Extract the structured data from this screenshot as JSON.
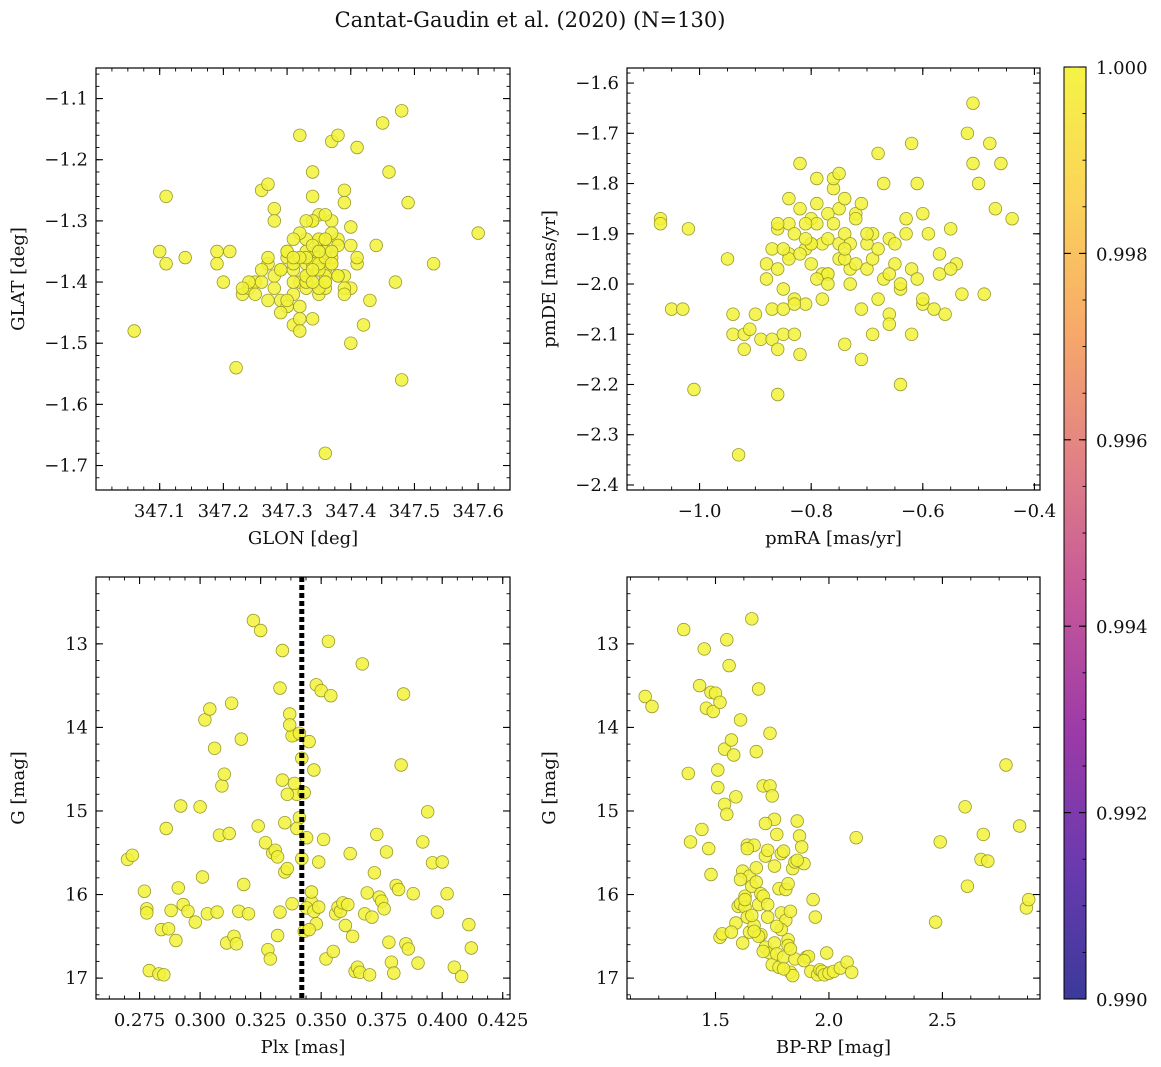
{
  "figure": {
    "title": "Cantat-Gaudin et al. (2020) (N=130)"
  },
  "colors": {
    "point_fill": "#f2f23a",
    "point_edge": "#9a9a2c",
    "median_line": "#000000",
    "colormap": [
      "#3b3a9a",
      "#6a3aae",
      "#9c3aa8",
      "#c4569a",
      "#e07f86",
      "#f7a86a",
      "#fbd35a",
      "#f5f345"
    ]
  },
  "colorbar": {
    "ticks": [
      "0.990",
      "0.992",
      "0.994",
      "0.996",
      "0.998",
      "1.000"
    ],
    "range": [
      0.99,
      1.0
    ]
  },
  "chart_data": [
    {
      "id": "lb",
      "type": "scatter",
      "xlabel": "GLON [deg]",
      "ylabel": "GLAT [deg]",
      "xlim": [
        347.0,
        347.65
      ],
      "ylim": [
        -1.74,
        -1.05
      ],
      "xticks": [
        347.1,
        347.2,
        347.3,
        347.4,
        347.5,
        347.6
      ],
      "xtick_labels": [
        "347.1",
        "347.2",
        "347.3",
        "347.4",
        "347.5",
        "347.6"
      ],
      "yticks": [
        -1.1,
        -1.2,
        -1.3,
        -1.4,
        -1.5,
        -1.6,
        -1.7
      ],
      "ytick_labels": [
        "−1.1",
        "−1.2",
        "−1.3",
        "−1.4",
        "−1.5",
        "−1.6",
        "−1.7"
      ],
      "invert_y": false,
      "x": [
        347.06,
        347.11,
        347.11,
        347.1,
        347.14,
        347.19,
        347.19,
        347.2,
        347.21,
        347.22,
        347.23,
        347.24,
        347.25,
        347.26,
        347.26,
        347.27,
        347.27,
        347.27,
        347.28,
        347.28,
        347.28,
        347.29,
        347.29,
        347.3,
        347.3,
        347.3,
        347.31,
        347.31,
        347.31,
        347.32,
        347.32,
        347.32,
        347.32,
        347.33,
        347.33,
        347.33,
        347.33,
        347.33,
        347.34,
        347.34,
        347.34,
        347.34,
        347.34,
        347.34,
        347.35,
        347.35,
        347.35,
        347.35,
        347.35,
        347.36,
        347.36,
        347.36,
        347.36,
        347.36,
        347.37,
        347.37,
        347.37,
        347.38,
        347.38,
        347.38,
        347.39,
        347.39,
        347.39,
        347.4,
        347.4,
        347.4,
        347.41,
        347.41,
        347.42,
        347.43,
        347.44,
        347.45,
        347.46,
        347.47,
        347.48,
        347.48,
        347.49,
        347.53,
        347.6,
        347.37,
        347.34,
        347.36,
        347.33,
        347.35,
        347.31,
        347.4,
        347.41,
        347.39,
        347.3,
        347.28,
        347.32,
        347.34,
        347.35,
        347.36,
        347.38,
        347.33,
        347.35,
        347.37,
        347.29,
        347.31,
        347.34,
        347.36,
        347.39,
        347.32,
        347.33,
        347.35,
        347.34,
        347.3,
        347.29,
        347.31,
        347.27,
        347.26,
        347.25,
        347.24,
        347.23,
        347.36,
        347.38,
        347.35,
        347.33,
        347.37,
        347.34,
        347.36,
        347.32,
        347.35,
        347.34,
        347.31,
        347.36,
        347.37,
        347.36,
        347.38
      ],
      "y": [
        -1.48,
        -1.26,
        -1.37,
        -1.35,
        -1.36,
        -1.35,
        -1.37,
        -1.4,
        -1.35,
        -1.54,
        -1.42,
        -1.41,
        -1.4,
        -1.25,
        -1.4,
        -1.43,
        -1.24,
        -1.37,
        -1.28,
        -1.3,
        -1.41,
        -1.43,
        -1.38,
        -1.44,
        -1.36,
        -1.35,
        -1.38,
        -1.42,
        -1.47,
        -1.16,
        -1.46,
        -1.48,
        -1.4,
        -1.33,
        -1.35,
        -1.37,
        -1.39,
        -1.41,
        -1.22,
        -1.3,
        -1.36,
        -1.38,
        -1.4,
        -1.46,
        -1.34,
        -1.36,
        -1.38,
        -1.42,
        -1.29,
        -1.33,
        -1.35,
        -1.38,
        -1.41,
        -1.68,
        -1.17,
        -1.3,
        -1.37,
        -1.16,
        -1.33,
        -1.39,
        -1.25,
        -1.27,
        -1.39,
        -1.31,
        -1.34,
        -1.5,
        -1.37,
        -1.18,
        -1.47,
        -1.43,
        -1.34,
        -1.14,
        -1.22,
        -1.4,
        -1.12,
        -1.56,
        -1.27,
        -1.37,
        -1.32,
        -1.32,
        -1.26,
        -1.39,
        -1.4,
        -1.33,
        -1.37,
        -1.41,
        -1.36,
        -1.41,
        -1.43,
        -1.39,
        -1.32,
        -1.37,
        -1.38,
        -1.4,
        -1.34,
        -1.36,
        -1.41,
        -1.36,
        -1.38,
        -1.33,
        -1.3,
        -1.35,
        -1.42,
        -1.36,
        -1.39,
        -1.37,
        -1.4,
        -1.35,
        -1.45,
        -1.4,
        -1.36,
        -1.38,
        -1.42,
        -1.4,
        -1.41,
        -1.36,
        -1.39,
        -1.33,
        -1.3,
        -1.35,
        -1.34,
        -1.33,
        -1.44,
        -1.35,
        -1.38,
        -1.36,
        -1.4,
        -1.37,
        -1.29,
        -1.39
      ],
      "median_x": null
    },
    {
      "id": "pm",
      "type": "scatter",
      "xlabel": "pmRA [mas/yr]",
      "ylabel": "pmDE [mas/yr]",
      "xlim": [
        -1.13,
        -0.39
      ],
      "ylim": [
        -2.41,
        -1.57
      ],
      "xticks": [
        -1.0,
        -0.8,
        -0.6,
        -0.4
      ],
      "xtick_labels": [
        "−1.0",
        "−0.8",
        "−0.6",
        "−0.4"
      ],
      "yticks": [
        -1.6,
        -1.7,
        -1.8,
        -1.9,
        -2.0,
        -2.1,
        -2.2,
        -2.3,
        -2.4
      ],
      "ytick_labels": [
        "−1.6",
        "−1.7",
        "−1.8",
        "−1.9",
        "−2.0",
        "−2.1",
        "−2.2",
        "−2.3",
        "−2.4"
      ],
      "invert_y": false,
      "x": [
        -1.07,
        -1.07,
        -1.05,
        -1.03,
        -1.02,
        -1.01,
        -0.95,
        -0.94,
        -0.94,
        -0.93,
        -0.92,
        -0.91,
        -0.89,
        -0.88,
        -0.87,
        -0.87,
        -0.87,
        -0.86,
        -0.86,
        -0.86,
        -0.85,
        -0.85,
        -0.85,
        -0.84,
        -0.84,
        -0.84,
        -0.83,
        -0.83,
        -0.82,
        -0.82,
        -0.82,
        -0.81,
        -0.81,
        -0.8,
        -0.8,
        -0.8,
        -0.79,
        -0.79,
        -0.78,
        -0.78,
        -0.77,
        -0.77,
        -0.77,
        -0.76,
        -0.76,
        -0.75,
        -0.75,
        -0.75,
        -0.74,
        -0.74,
        -0.74,
        -0.73,
        -0.73,
        -0.73,
        -0.72,
        -0.72,
        -0.71,
        -0.71,
        -0.7,
        -0.7,
        -0.69,
        -0.69,
        -0.69,
        -0.68,
        -0.68,
        -0.67,
        -0.67,
        -0.66,
        -0.66,
        -0.65,
        -0.65,
        -0.64,
        -0.64,
        -0.63,
        -0.63,
        -0.62,
        -0.62,
        -0.62,
        -0.61,
        -0.61,
        -0.6,
        -0.6,
        -0.59,
        -0.58,
        -0.57,
        -0.56,
        -0.55,
        -0.54,
        -0.53,
        -0.52,
        -0.51,
        -0.51,
        -0.5,
        -0.49,
        -0.48,
        -0.47,
        -0.46,
        -0.44,
        -0.84,
        -0.76,
        -0.78,
        -0.81,
        -0.79,
        -0.82,
        -0.74,
        -0.75,
        -0.77,
        -0.83,
        -0.86,
        -0.72,
        -0.68,
        -0.66,
        -0.7,
        -0.64,
        -0.8,
        -0.85,
        -0.88,
        -0.9,
        -0.92,
        -0.83,
        -0.79,
        -0.74,
        -0.71,
        -0.66,
        -0.6,
        -0.57,
        -0.55,
        -0.77,
        -0.81,
        -0.86
      ],
      "y": [
        -1.87,
        -1.88,
        -2.05,
        -2.05,
        -1.89,
        -2.21,
        -1.95,
        -2.06,
        -2.1,
        -2.34,
        -2.1,
        -2.09,
        -2.11,
        -1.96,
        -1.93,
        -2.05,
        -2.11,
        -1.89,
        -1.97,
        -2.22,
        -2.01,
        -2.05,
        -2.1,
        -1.83,
        -1.88,
        -1.94,
        -2.03,
        -2.1,
        -1.76,
        -1.85,
        -2.14,
        -1.93,
        -2.04,
        -1.87,
        -1.92,
        -1.96,
        -1.79,
        -1.88,
        -1.92,
        -2.03,
        -1.86,
        -1.91,
        -1.98,
        -1.81,
        -1.88,
        -1.85,
        -1.92,
        -1.95,
        -1.83,
        -1.9,
        -2.12,
        -1.92,
        -1.97,
        -2.0,
        -1.86,
        -1.96,
        -2.05,
        -2.15,
        -1.92,
        -1.97,
        -1.9,
        -1.95,
        -2.1,
        -1.74,
        -2.03,
        -1.8,
        -1.99,
        -1.91,
        -2.06,
        -1.92,
        -1.96,
        -2.01,
        -2.2,
        -1.87,
        -1.9,
        -1.72,
        -1.97,
        -2.1,
        -1.8,
        -1.99,
        -1.86,
        -2.04,
        -1.9,
        -2.05,
        -1.98,
        -2.06,
        -1.89,
        -1.96,
        -2.02,
        -1.7,
        -1.64,
        -1.76,
        -1.8,
        -2.02,
        -1.72,
        -1.85,
        -1.76,
        -1.87,
        -1.95,
        -1.79,
        -1.98,
        -1.88,
        -1.84,
        -1.94,
        -1.95,
        -1.78,
        -1.98,
        -1.9,
        -2.13,
        -1.87,
        -1.93,
        -2.08,
        -1.9,
        -2.0,
        -1.92,
        -1.93,
        -1.99,
        -2.06,
        -2.13,
        -2.04,
        -1.99,
        -1.93,
        -1.84,
        -1.98,
        -2.03,
        -1.94,
        -1.97,
        -2.0,
        -1.91,
        -1.88
      ],
      "median_x": null
    },
    {
      "id": "plx",
      "type": "scatter",
      "xlabel": "Plx [mas]",
      "ylabel": "G [mag]",
      "xlim": [
        0.257,
        0.428
      ],
      "ylim": [
        12.2,
        17.25
      ],
      "xticks": [
        0.275,
        0.3,
        0.325,
        0.35,
        0.375,
        0.4,
        0.425
      ],
      "xtick_labels": [
        "0.275",
        "0.300",
        "0.325",
        "0.350",
        "0.375",
        "0.400",
        "0.425"
      ],
      "yticks": [
        13,
        14,
        15,
        16,
        17
      ],
      "ytick_labels": [
        "13",
        "14",
        "15",
        "16",
        "17"
      ],
      "invert_y": true,
      "x": [
        0.27,
        0.272,
        0.277,
        0.278,
        0.278,
        0.279,
        0.283,
        0.284,
        0.285,
        0.286,
        0.287,
        0.288,
        0.29,
        0.291,
        0.292,
        0.293,
        0.295,
        0.298,
        0.3,
        0.301,
        0.302,
        0.303,
        0.304,
        0.306,
        0.307,
        0.308,
        0.309,
        0.31,
        0.311,
        0.312,
        0.313,
        0.314,
        0.315,
        0.316,
        0.317,
        0.318,
        0.32,
        0.322,
        0.324,
        0.325,
        0.327,
        0.328,
        0.329,
        0.33,
        0.331,
        0.332,
        0.333,
        0.334,
        0.335,
        0.336,
        0.337,
        0.338,
        0.339,
        0.34,
        0.341,
        0.342,
        0.343,
        0.344,
        0.345,
        0.346,
        0.347,
        0.348,
        0.349,
        0.35,
        0.351,
        0.352,
        0.353,
        0.354,
        0.355,
        0.356,
        0.357,
        0.358,
        0.359,
        0.36,
        0.361,
        0.362,
        0.363,
        0.364,
        0.365,
        0.366,
        0.367,
        0.368,
        0.369,
        0.37,
        0.371,
        0.372,
        0.373,
        0.374,
        0.375,
        0.376,
        0.377,
        0.378,
        0.379,
        0.38,
        0.381,
        0.382,
        0.383,
        0.384,
        0.385,
        0.386,
        0.388,
        0.39,
        0.392,
        0.394,
        0.396,
        0.398,
        0.4,
        0.402,
        0.405,
        0.408,
        0.411,
        0.412,
        0.336,
        0.338,
        0.341,
        0.337,
        0.343,
        0.339,
        0.334,
        0.342,
        0.344,
        0.34,
        0.335,
        0.346,
        0.332,
        0.347,
        0.348,
        0.345,
        0.333,
        0.349
      ],
      "y": [
        15.58,
        15.53,
        15.96,
        16.17,
        16.22,
        16.91,
        16.95,
        16.42,
        16.96,
        15.21,
        16.41,
        16.19,
        16.55,
        15.92,
        14.94,
        16.12,
        16.2,
        16.33,
        14.95,
        15.79,
        13.91,
        16.23,
        13.78,
        14.25,
        16.21,
        15.29,
        14.7,
        14.56,
        16.58,
        15.27,
        13.71,
        16.5,
        16.59,
        16.2,
        14.14,
        15.88,
        16.23,
        12.72,
        15.18,
        12.84,
        15.38,
        16.66,
        16.77,
        15.5,
        15.47,
        16.49,
        13.53,
        13.08,
        15.73,
        15.69,
        13.84,
        16.11,
        14.09,
        14.8,
        15.08,
        14.37,
        16.44,
        15.32,
        14.17,
        16.09,
        14.51,
        13.49,
        15.61,
        13.56,
        15.34,
        16.77,
        12.97,
        13.62,
        16.68,
        16.23,
        16.15,
        16.2,
        16.1,
        16.37,
        16.12,
        15.51,
        16.5,
        16.92,
        16.87,
        16.93,
        13.24,
        16.23,
        15.98,
        16.96,
        16.27,
        15.74,
        15.28,
        16.03,
        16.08,
        16.17,
        15.49,
        16.57,
        16.81,
        16.94,
        15.89,
        15.94,
        14.45,
        13.6,
        16.59,
        16.65,
        15.99,
        16.82,
        15.37,
        15.01,
        15.62,
        16.21,
        15.61,
        15.99,
        16.87,
        16.98,
        16.36,
        16.64,
        14.8,
        14.1,
        14.07,
        13.97,
        14.78,
        14.67,
        14.63,
        15.57,
        16.16,
        15.21,
        15.14,
        15.97,
        15.55,
        16.2,
        16.35,
        16.42,
        16.21,
        16.15
      ],
      "median_x": 0.342
    },
    {
      "id": "cmd",
      "type": "scatter",
      "xlabel": "BP-RP [mag]",
      "ylabel": "G [mag]",
      "xlim": [
        1.11,
        2.93
      ],
      "ylim": [
        12.2,
        17.25
      ],
      "xticks": [
        1.5,
        2.0,
        2.5
      ],
      "xtick_labels": [
        "1.5",
        "2.0",
        "2.5"
      ],
      "yticks": [
        13,
        14,
        15,
        16,
        17
      ],
      "ytick_labels": [
        "13",
        "14",
        "15",
        "16",
        "17"
      ],
      "invert_y": true,
      "x": [
        1.19,
        1.22,
        1.36,
        1.38,
        1.39,
        1.43,
        1.44,
        1.45,
        1.46,
        1.47,
        1.48,
        1.48,
        1.49,
        1.5,
        1.51,
        1.51,
        1.52,
        1.52,
        1.53,
        1.54,
        1.54,
        1.55,
        1.55,
        1.56,
        1.57,
        1.58,
        1.59,
        1.6,
        1.61,
        1.61,
        1.62,
        1.62,
        1.63,
        1.63,
        1.64,
        1.64,
        1.65,
        1.65,
        1.66,
        1.66,
        1.67,
        1.67,
        1.68,
        1.68,
        1.69,
        1.69,
        1.7,
        1.7,
        1.71,
        1.71,
        1.72,
        1.72,
        1.73,
        1.73,
        1.74,
        1.74,
        1.75,
        1.75,
        1.76,
        1.76,
        1.77,
        1.77,
        1.78,
        1.78,
        1.79,
        1.79,
        1.8,
        1.8,
        1.81,
        1.81,
        1.82,
        1.82,
        1.83,
        1.83,
        1.84,
        1.84,
        1.85,
        1.85,
        1.86,
        1.87,
        1.88,
        1.89,
        1.9,
        1.91,
        1.92,
        1.93,
        1.94,
        1.95,
        1.96,
        1.97,
        1.98,
        1.99,
        2.0,
        2.02,
        2.05,
        2.08,
        2.1,
        2.12,
        2.47,
        2.49,
        2.6,
        2.61,
        2.67,
        2.68,
        2.7,
        2.78,
        2.84,
        2.87,
        2.88,
        1.74,
        1.72,
        1.68,
        1.63,
        1.61,
        1.76,
        1.79,
        1.82,
        1.66,
        1.59,
        1.57,
        1.71,
        1.69,
        1.64,
        1.77,
        1.86,
        1.89,
        1.67,
        1.73,
        1.8,
        1.83
      ],
      "y": [
        13.63,
        13.75,
        12.83,
        14.55,
        15.37,
        13.5,
        15.22,
        13.06,
        13.77,
        15.45,
        15.76,
        13.58,
        13.81,
        13.59,
        14.51,
        14.72,
        16.51,
        13.7,
        16.47,
        14.26,
        14.92,
        12.95,
        15.04,
        13.26,
        14.15,
        14.33,
        14.83,
        16.14,
        13.91,
        16.11,
        15.72,
        16.58,
        16.02,
        16.15,
        15.41,
        16.27,
        15.78,
        16.45,
        12.7,
        15.9,
        15.41,
        16.37,
        14.29,
        15.68,
        16.12,
        13.54,
        15.99,
        16.48,
        14.7,
        16.02,
        15.54,
        16.63,
        15.47,
        16.27,
        14.7,
        16.7,
        14.82,
        16.84,
        15.1,
        16.58,
        15.28,
        16.71,
        15.93,
        16.87,
        15.51,
        16.22,
        15.48,
        16.75,
        15.94,
        16.31,
        15.87,
        16.54,
        16.2,
        16.93,
        15.69,
        16.97,
        15.61,
        16.77,
        15.12,
        15.3,
        15.43,
        15.63,
        16.75,
        16.74,
        16.92,
        16.06,
        16.27,
        16.96,
        16.9,
        16.92,
        16.96,
        16.7,
        16.94,
        16.92,
        16.88,
        16.81,
        16.93,
        15.32,
        16.33,
        15.37,
        14.95,
        15.9,
        15.58,
        15.28,
        15.6,
        14.45,
        15.18,
        16.16,
        16.06,
        14.07,
        15.15,
        15.85,
        16.06,
        15.82,
        15.66,
        16.42,
        16.61,
        16.25,
        16.34,
        16.45,
        16.68,
        16.5,
        15.45,
        16.38,
        15.59,
        16.79,
        16.44,
        16.12,
        16.89,
        16.65
      ]
    }
  ]
}
